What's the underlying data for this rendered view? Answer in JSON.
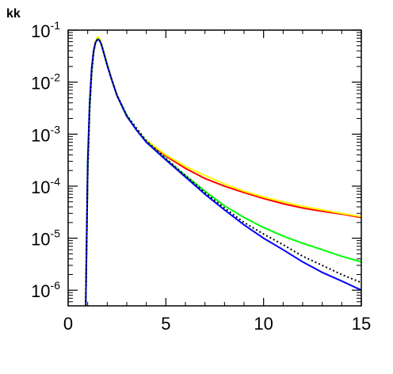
{
  "chart_data": {
    "type": "line",
    "title": "kk",
    "xlabel": "",
    "ylabel": "",
    "xlim": [
      0,
      15
    ],
    "ylim": [
      5e-07,
      0.1
    ],
    "yscale": "log",
    "grid": false,
    "legend": "none",
    "x_ticks": [
      0,
      5,
      10,
      15
    ],
    "x_tick_labels": [
      "0",
      "5",
      "10",
      "15"
    ],
    "y_ticks": [
      1e-06,
      1e-05,
      0.0001,
      0.001,
      0.01,
      0.1
    ],
    "y_tick_labels": [
      {
        "base": "10",
        "exp": "-6"
      },
      {
        "base": "10",
        "exp": "-5"
      },
      {
        "base": "10",
        "exp": "-4"
      },
      {
        "base": "10",
        "exp": "-3"
      },
      {
        "base": "10",
        "exp": "-2"
      },
      {
        "base": "10",
        "exp": "-1"
      }
    ],
    "series": [
      {
        "color": "#ff0000",
        "style": "solid",
        "x": [
          0.9,
          1.0,
          1.1,
          1.2,
          1.3,
          1.4,
          1.5,
          1.6,
          1.7,
          1.8,
          2.0,
          2.2,
          2.5,
          3.0,
          3.5,
          4.0,
          5.0,
          6.0,
          7.0,
          8.0,
          9.0,
          10.0,
          11.0,
          12.0,
          13.0,
          14.0,
          15.0
        ],
        "values": [
          5e-07,
          0.0002,
          0.003,
          0.015,
          0.038,
          0.058,
          0.068,
          0.066,
          0.055,
          0.04,
          0.022,
          0.012,
          0.0055,
          0.0022,
          0.0012,
          0.00075,
          0.00038,
          0.00022,
          0.00014,
          0.0001,
          7.5e-05,
          5.8e-05,
          4.6e-05,
          3.8e-05,
          3.3e-05,
          2.9e-05,
          2.5e-05
        ]
      },
      {
        "color": "#ffff00",
        "style": "solid",
        "x": [
          0.9,
          1.0,
          1.1,
          1.2,
          1.3,
          1.4,
          1.5,
          1.6,
          1.7,
          1.8,
          2.0,
          2.2,
          2.5,
          3.0,
          3.5,
          4.0,
          5.0,
          6.0,
          7.0,
          8.0,
          9.0,
          10.0,
          11.0,
          12.0,
          13.0,
          14.0,
          15.0
        ],
        "values": [
          5e-07,
          0.00025,
          0.0035,
          0.017,
          0.042,
          0.062,
          0.074,
          0.07,
          0.057,
          0.041,
          0.022,
          0.012,
          0.0055,
          0.0022,
          0.0012,
          0.00076,
          0.0004,
          0.00024,
          0.00016,
          0.00011,
          8e-05,
          6.2e-05,
          5e-05,
          4.1e-05,
          3.5e-05,
          3e-05,
          2.6e-05
        ]
      },
      {
        "color": "#00ff00",
        "style": "solid",
        "x": [
          0.9,
          1.0,
          1.1,
          1.2,
          1.3,
          1.4,
          1.5,
          1.6,
          1.7,
          1.8,
          2.0,
          2.2,
          2.5,
          3.0,
          3.5,
          4.0,
          5.0,
          6.0,
          7.0,
          8.0,
          9.0,
          10.0,
          11.0,
          12.0,
          13.0,
          14.0,
          15.0
        ],
        "values": [
          5e-07,
          0.0002,
          0.003,
          0.015,
          0.038,
          0.057,
          0.067,
          0.065,
          0.054,
          0.04,
          0.022,
          0.012,
          0.0056,
          0.0023,
          0.0012,
          0.00072,
          0.00033,
          0.00016,
          8e-05,
          4.2e-05,
          2.5e-05,
          1.6e-05,
          1.1e-05,
          8e-06,
          6e-06,
          4.5e-06,
          3.5e-06
        ]
      },
      {
        "color": "#0000ff",
        "style": "solid",
        "x": [
          0.9,
          1.0,
          1.1,
          1.2,
          1.3,
          1.4,
          1.5,
          1.6,
          1.7,
          1.8,
          2.0,
          2.2,
          2.5,
          3.0,
          3.5,
          4.0,
          5.0,
          6.0,
          7.0,
          8.0,
          9.0,
          10.0,
          11.0,
          12.0,
          13.0,
          14.0,
          15.0
        ],
        "values": [
          5e-07,
          0.0003,
          0.004,
          0.018,
          0.04,
          0.058,
          0.066,
          0.064,
          0.053,
          0.039,
          0.021,
          0.012,
          0.0055,
          0.0022,
          0.0012,
          0.0007,
          0.00032,
          0.00015,
          7e-05,
          3.5e-05,
          1.8e-05,
          1e-05,
          6e-06,
          3.5e-06,
          2.2e-06,
          1.5e-06,
          1e-06
        ]
      },
      {
        "color": "#000000",
        "style": "dotted",
        "x": [
          0.9,
          1.0,
          1.1,
          1.2,
          1.3,
          1.4,
          1.5,
          1.6,
          1.7,
          1.8,
          2.0,
          2.2,
          2.5,
          3.0,
          3.5,
          4.0,
          5.0,
          6.0,
          7.0,
          8.0,
          9.0,
          10.0,
          11.0,
          12.0,
          13.0,
          14.0,
          15.0
        ],
        "values": [
          5e-07,
          0.0002,
          0.003,
          0.015,
          0.037,
          0.056,
          0.066,
          0.064,
          0.053,
          0.039,
          0.021,
          0.012,
          0.0056,
          0.0023,
          0.0013,
          0.00075,
          0.00034,
          0.00016,
          7.5e-05,
          3.8e-05,
          2e-05,
          1.2e-05,
          7.5e-06,
          4.5e-06,
          3e-06,
          2e-06,
          1.4e-06
        ]
      }
    ]
  }
}
